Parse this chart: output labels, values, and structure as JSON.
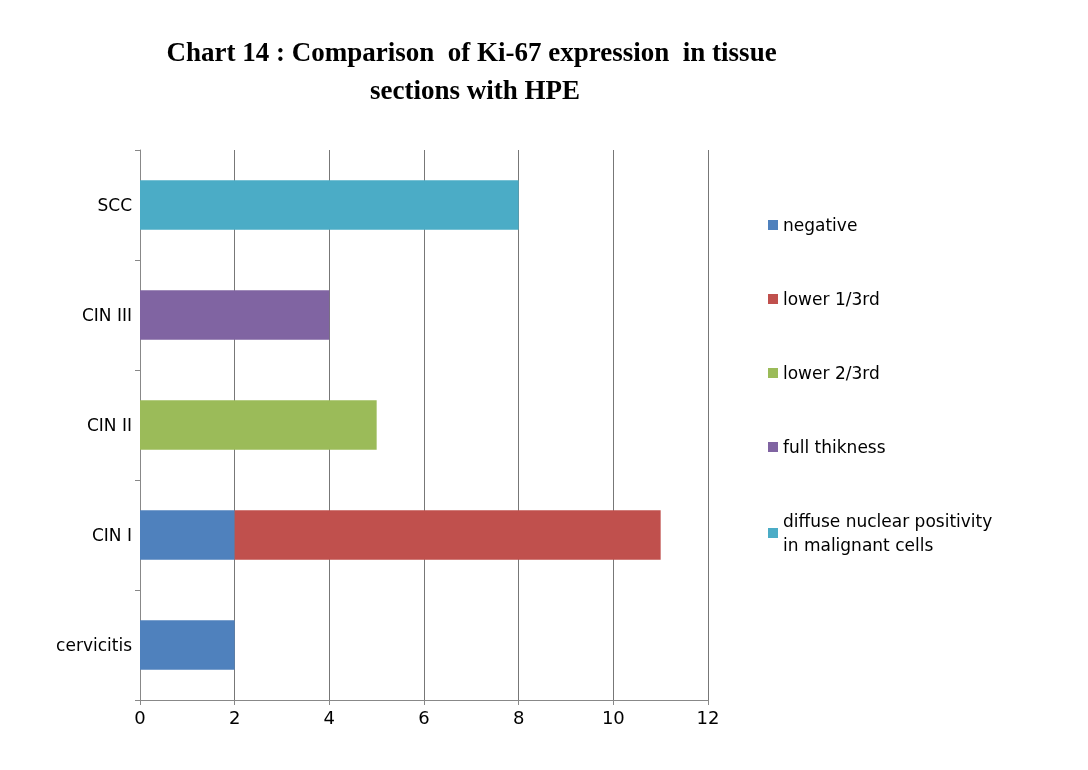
{
  "chart_data": {
    "type": "bar",
    "orientation": "horizontal",
    "stacked": true,
    "title": "Chart 14 : Comparison  of Ki-67 expression  in tissue sections with HPE",
    "categories": [
      "SCC",
      "CIN III",
      "CIN II",
      "CIN I",
      "cervicitis"
    ],
    "series": [
      {
        "name": "negative",
        "color": "#4f81bd",
        "values": [
          null,
          null,
          null,
          2,
          2
        ]
      },
      {
        "name": "lower 1/3rd",
        "color": "#c0504d",
        "values": [
          null,
          null,
          null,
          9,
          null
        ]
      },
      {
        "name": "lower 2/3rd",
        "color": "#9bbb59",
        "values": [
          null,
          null,
          5,
          null,
          null
        ]
      },
      {
        "name": "full thikness",
        "color": "#8064a2",
        "values": [
          null,
          4,
          null,
          null,
          null
        ]
      },
      {
        "name": "diffuse nuclear positivity in malignant cells",
        "color": "#4bacc6",
        "values": [
          8,
          null,
          null,
          null,
          null
        ]
      }
    ],
    "xlim": [
      0,
      12
    ],
    "xticks": [
      0,
      2,
      4,
      6,
      8,
      10,
      12
    ],
    "grid": "x",
    "legend": "right"
  }
}
